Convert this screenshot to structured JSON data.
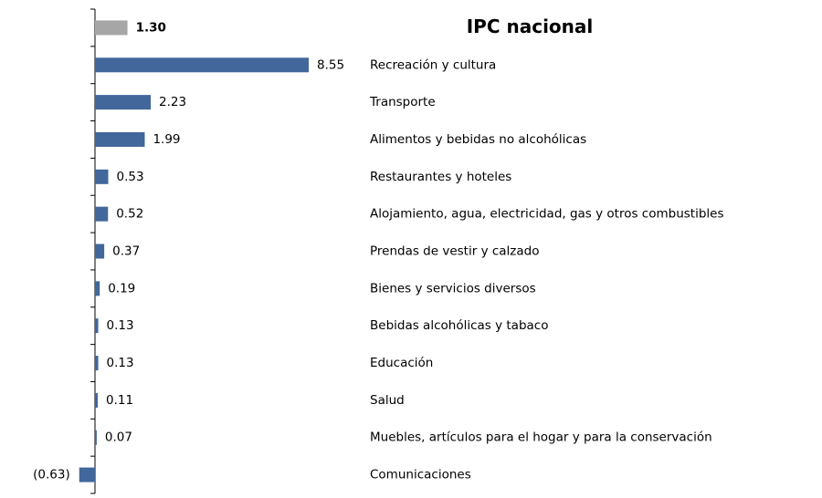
{
  "chart_data": {
    "type": "hbar",
    "categories": [
      "IPC nacional",
      "Recreación y cultura",
      "Transporte",
      "Alimentos y bebidas no alcohólicas",
      "Restaurantes y hoteles",
      "Alojamiento, agua, electricidad, gas y otros combustibles",
      "Prendas de vestir y calzado",
      "Bienes y servicios diversos",
      "Bebidas alcohólicas y tabaco",
      "Educación",
      "Salud",
      "Muebles, artículos para el hogar y para la conservación",
      "Comunicaciones"
    ],
    "values": [
      1.3,
      8.55,
      2.23,
      1.99,
      0.53,
      0.52,
      0.37,
      0.19,
      0.13,
      0.13,
      0.11,
      0.07,
      -0.63
    ],
    "value_labels": [
      "1.30",
      "8.55",
      "2.23",
      "1.99",
      "0.53",
      "0.52",
      "0.37",
      "0.19",
      "0.13",
      "0.13",
      "0.11",
      "0.07",
      "(0.63)"
    ],
    "colors": [
      "#a6a6a6",
      "#41679b",
      "#41679b",
      "#41679b",
      "#41679b",
      "#41679b",
      "#41679b",
      "#41679b",
      "#41679b",
      "#41679b",
      "#41679b",
      "#41679b",
      "#41679b"
    ]
  }
}
